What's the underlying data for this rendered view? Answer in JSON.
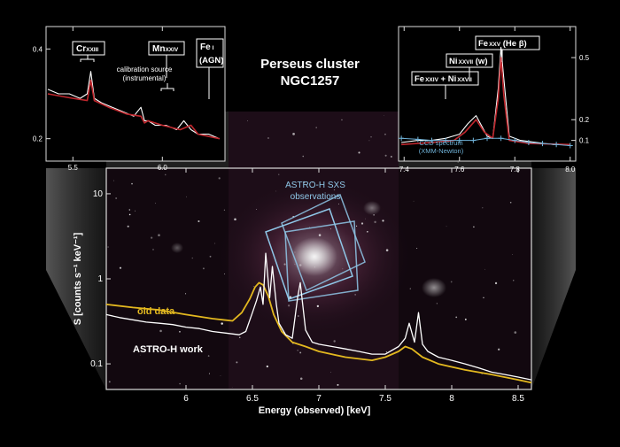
{
  "title": {
    "line1": "Perseus cluster",
    "line2": "NGC1257"
  },
  "colors": {
    "background": "#000000",
    "main_white": "#ffffff",
    "old_data": "#e3b81f",
    "model_red": "#c0272d",
    "ccd_blue": "#6fb2d8",
    "sxs_box": "#8fc7e8"
  },
  "chart_data": [
    {
      "id": "main",
      "type": "line",
      "title": "",
      "xlabel": "Energy (observed) [keV]",
      "ylabel": "S [counts s⁻¹ keV⁻¹]",
      "yscale": "log",
      "xlim": [
        5.4,
        8.6
      ],
      "ylim": [
        0.05,
        20
      ],
      "xticks": [
        6,
        6.5,
        7,
        7.5,
        8,
        8.5
      ],
      "xticklabels": [
        "6",
        "6.5",
        "7",
        "7.5",
        "8",
        "8.5"
      ],
      "yticks": [
        0.1,
        1,
        10
      ],
      "yticklabels": [
        "0.1",
        "1",
        "10"
      ],
      "annotations": {
        "old_data": "old data",
        "astro_h": "ASTRO-H work",
        "sxs_line1": "ASTRO-H SXS",
        "sxs_line2": "observations"
      },
      "series": [
        {
          "name": "old data",
          "x": [
            5.4,
            5.6,
            5.8,
            6.0,
            6.2,
            6.35,
            6.42,
            6.48,
            6.52,
            6.55,
            6.58,
            6.62,
            6.66,
            6.72,
            6.8,
            6.9,
            7.0,
            7.2,
            7.4,
            7.5,
            7.6,
            7.65,
            7.7,
            7.78,
            7.9,
            8.1,
            8.3,
            8.5,
            8.6
          ],
          "y": [
            0.5,
            0.46,
            0.43,
            0.38,
            0.34,
            0.32,
            0.4,
            0.58,
            0.8,
            0.9,
            0.85,
            0.62,
            0.38,
            0.24,
            0.18,
            0.16,
            0.14,
            0.12,
            0.11,
            0.12,
            0.14,
            0.16,
            0.15,
            0.12,
            0.1,
            0.085,
            0.075,
            0.065,
            0.06
          ]
        },
        {
          "name": "ASTRO-H work",
          "x": [
            5.4,
            5.5,
            5.6,
            5.7,
            5.8,
            5.9,
            6.0,
            6.1,
            6.2,
            6.3,
            6.4,
            6.45,
            6.5,
            6.53,
            6.56,
            6.58,
            6.6,
            6.63,
            6.65,
            6.68,
            6.7,
            6.75,
            6.8,
            6.84,
            6.86,
            6.9,
            6.95,
            7.0,
            7.1,
            7.2,
            7.3,
            7.4,
            7.5,
            7.6,
            7.65,
            7.68,
            7.72,
            7.75,
            7.78,
            7.82,
            7.9,
            8.0,
            8.1,
            8.2,
            8.3,
            8.4,
            8.5,
            8.6
          ],
          "y": [
            0.38,
            0.35,
            0.33,
            0.31,
            0.3,
            0.29,
            0.27,
            0.26,
            0.24,
            0.23,
            0.22,
            0.24,
            0.4,
            0.55,
            0.8,
            0.5,
            2.0,
            0.6,
            1.4,
            0.5,
            0.3,
            0.22,
            0.2,
            0.6,
            0.9,
            0.25,
            0.18,
            0.17,
            0.16,
            0.15,
            0.14,
            0.13,
            0.13,
            0.16,
            0.2,
            0.3,
            0.18,
            0.4,
            0.17,
            0.14,
            0.12,
            0.11,
            0.1,
            0.09,
            0.08,
            0.075,
            0.07,
            0.065
          ]
        }
      ]
    },
    {
      "id": "inset_left",
      "type": "line",
      "xlim": [
        5.35,
        6.35
      ],
      "ylim": [
        0.15,
        0.45
      ],
      "xticks": [
        5.5,
        6.0
      ],
      "xticklabels": [
        "5.5",
        "6.0"
      ],
      "yticks": [
        0.2,
        0.4
      ],
      "yticklabels": [
        "0.2",
        "0.4"
      ],
      "labels": {
        "cr": "Cr",
        "cr_sub": "XXIII",
        "mn": "Mn",
        "mn_sub": "XXIV",
        "fe": "Fe",
        "fe_sub": "I",
        "agn": "(AGN)",
        "calib1": "calibration source",
        "calib2": "(instrumental)"
      },
      "series": [
        {
          "name": "data",
          "x": [
            5.36,
            5.42,
            5.48,
            5.54,
            5.58,
            5.6,
            5.62,
            5.66,
            5.72,
            5.78,
            5.84,
            5.88,
            5.9,
            5.92,
            5.96,
            6.02,
            6.08,
            6.12,
            6.16,
            6.2,
            6.26,
            6.32
          ],
          "y": [
            0.31,
            0.3,
            0.3,
            0.29,
            0.3,
            0.35,
            0.29,
            0.28,
            0.27,
            0.26,
            0.25,
            0.27,
            0.24,
            0.24,
            0.23,
            0.23,
            0.22,
            0.24,
            0.22,
            0.21,
            0.21,
            0.2
          ]
        },
        {
          "name": "model",
          "x": [
            5.36,
            5.5,
            5.58,
            5.6,
            5.62,
            5.7,
            5.8,
            5.88,
            5.9,
            5.92,
            6.0,
            6.1,
            6.16,
            6.2,
            6.32
          ],
          "y": [
            0.3,
            0.29,
            0.285,
            0.33,
            0.285,
            0.27,
            0.255,
            0.25,
            0.235,
            0.24,
            0.23,
            0.22,
            0.23,
            0.21,
            0.2
          ]
        }
      ]
    },
    {
      "id": "inset_right",
      "type": "line",
      "xlim": [
        7.38,
        8.02
      ],
      "ylim": [
        0.0,
        0.65
      ],
      "xticks": [
        7.4,
        7.6,
        7.8,
        8.0
      ],
      "xticklabels": [
        "7.4",
        "7.6",
        "7.8",
        "8.0"
      ],
      "yticks": [
        0.1,
        0.2,
        0.5
      ],
      "yticklabels": [
        "0.1",
        "0.2",
        "0.5"
      ],
      "labels": {
        "fe_he": "Fe",
        "fe_he_sub": "XXV",
        "fe_he_rest": " (He β)",
        "ni_w": "Ni",
        "ni_w_sub": "XXVII",
        "ni_w_rest": " (w)",
        "fe_ni": "Fe",
        "fe_ni_sub1": "XXIV",
        "fe_ni_mid": " + Ni",
        "fe_ni_sub2": "XXVII",
        "ccd1": "CCD spectrum",
        "ccd2": "(XMM-Newton)"
      },
      "series": [
        {
          "name": "data",
          "x": [
            7.39,
            7.45,
            7.5,
            7.55,
            7.6,
            7.63,
            7.66,
            7.68,
            7.7,
            7.72,
            7.74,
            7.75,
            7.76,
            7.78,
            7.82,
            7.88,
            7.94,
            8.0
          ],
          "y": [
            0.09,
            0.1,
            0.1,
            0.11,
            0.13,
            0.18,
            0.22,
            0.17,
            0.12,
            0.11,
            0.35,
            0.55,
            0.4,
            0.12,
            0.1,
            0.09,
            0.08,
            0.08
          ]
        },
        {
          "name": "model",
          "x": [
            7.39,
            7.5,
            7.58,
            7.62,
            7.66,
            7.69,
            7.72,
            7.74,
            7.75,
            7.76,
            7.78,
            7.85,
            8.0
          ],
          "y": [
            0.08,
            0.09,
            0.1,
            0.14,
            0.2,
            0.14,
            0.11,
            0.3,
            0.5,
            0.32,
            0.1,
            0.085,
            0.08
          ]
        },
        {
          "name": "CCD spectrum (XMM-Newton)",
          "x": [
            7.39,
            7.45,
            7.5,
            7.55,
            7.6,
            7.65,
            7.7,
            7.75,
            7.8,
            7.85,
            7.9,
            7.95,
            8.0
          ],
          "y": [
            0.11,
            0.105,
            0.1,
            0.1,
            0.1,
            0.1,
            0.11,
            0.11,
            0.1,
            0.09,
            0.085,
            0.08,
            0.075
          ]
        }
      ]
    }
  ]
}
